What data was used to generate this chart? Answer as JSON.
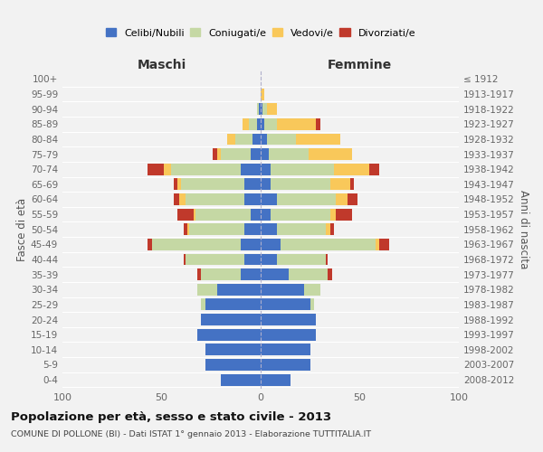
{
  "age_groups": [
    "0-4",
    "5-9",
    "10-14",
    "15-19",
    "20-24",
    "25-29",
    "30-34",
    "35-39",
    "40-44",
    "45-49",
    "50-54",
    "55-59",
    "60-64",
    "65-69",
    "70-74",
    "75-79",
    "80-84",
    "85-89",
    "90-94",
    "95-99",
    "100+"
  ],
  "birth_years": [
    "2008-2012",
    "2003-2007",
    "1998-2002",
    "1993-1997",
    "1988-1992",
    "1983-1987",
    "1978-1982",
    "1973-1977",
    "1968-1972",
    "1963-1967",
    "1958-1962",
    "1953-1957",
    "1948-1952",
    "1943-1947",
    "1938-1942",
    "1933-1937",
    "1928-1932",
    "1923-1927",
    "1918-1922",
    "1913-1917",
    "≤ 1912"
  ],
  "male_celibe": [
    20,
    28,
    28,
    32,
    30,
    28,
    22,
    10,
    8,
    10,
    8,
    5,
    8,
    8,
    10,
    5,
    4,
    2,
    1,
    0,
    0
  ],
  "male_coniugato": [
    0,
    0,
    0,
    0,
    0,
    2,
    10,
    20,
    30,
    45,
    28,
    28,
    30,
    32,
    35,
    15,
    9,
    4,
    1,
    0,
    0
  ],
  "male_vedovo": [
    0,
    0,
    0,
    0,
    0,
    0,
    0,
    0,
    0,
    0,
    1,
    1,
    3,
    2,
    4,
    2,
    4,
    3,
    0,
    0,
    0
  ],
  "male_divorziato": [
    0,
    0,
    0,
    0,
    0,
    0,
    0,
    2,
    1,
    2,
    2,
    8,
    3,
    2,
    8,
    2,
    0,
    0,
    0,
    0,
    0
  ],
  "female_celibe": [
    15,
    25,
    25,
    28,
    28,
    25,
    22,
    14,
    8,
    10,
    8,
    5,
    8,
    5,
    5,
    4,
    3,
    2,
    1,
    0,
    0
  ],
  "female_coniugata": [
    0,
    0,
    0,
    0,
    0,
    2,
    8,
    20,
    25,
    48,
    25,
    30,
    30,
    30,
    32,
    20,
    15,
    6,
    2,
    0,
    0
  ],
  "female_vedova": [
    0,
    0,
    0,
    0,
    0,
    0,
    0,
    0,
    0,
    2,
    2,
    3,
    6,
    10,
    18,
    22,
    22,
    20,
    5,
    2,
    0
  ],
  "female_divorziata": [
    0,
    0,
    0,
    0,
    0,
    0,
    0,
    2,
    1,
    5,
    2,
    8,
    5,
    2,
    5,
    0,
    0,
    2,
    0,
    0,
    0
  ],
  "colors": {
    "celibe": "#4472C4",
    "coniugato": "#C5D8A4",
    "vedovo": "#F9C85A",
    "divorziato": "#C0392B"
  },
  "title_main": "Popolazione per età, sesso e stato civile - 2013",
  "title_sub": "COMUNE DI POLLONE (BI) - Dati ISTAT 1° gennaio 2013 - Elaborazione TUTTITALIA.IT",
  "xlabel_left": "Maschi",
  "xlabel_right": "Femmine",
  "ylabel_left": "Fasce di età",
  "ylabel_right": "Anni di nascita",
  "xlim": 100,
  "bg_color": "#f2f2f2",
  "grid_color": "#ffffff",
  "legend_labels": [
    "Celibi/Nubili",
    "Coniugati/e",
    "Vedovi/e",
    "Divorziati/e"
  ]
}
